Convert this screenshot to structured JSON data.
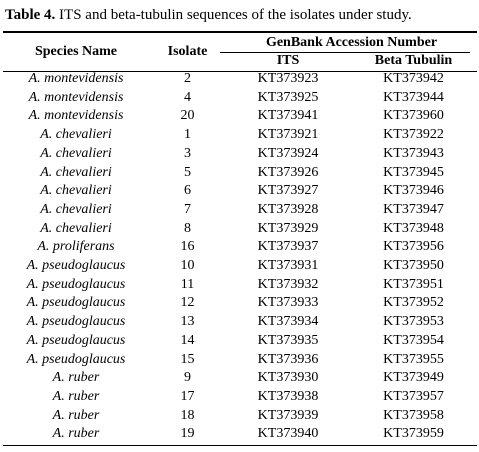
{
  "caption": {
    "label": "Table 4.",
    "text": " ITS and beta-tubulin sequences of the isolates under study."
  },
  "headers": {
    "species": "Species Name",
    "isolate": "Isolate",
    "genbank": "GenBank Accession Number",
    "its": "ITS",
    "beta": "Beta Tubulin"
  },
  "rows": [
    {
      "species": "A. montevidensis",
      "isolate": "2",
      "its": "KT373923",
      "beta": "KT373942"
    },
    {
      "species": "A. montevidensis",
      "isolate": "4",
      "its": "KT373925",
      "beta": "KT373944"
    },
    {
      "species": "A. montevidensis",
      "isolate": "20",
      "its": "KT373941",
      "beta": "KT373960"
    },
    {
      "species": "A. chevalieri",
      "isolate": "1",
      "its": "KT373921",
      "beta": "KT373922"
    },
    {
      "species": "A. chevalieri",
      "isolate": "3",
      "its": "KT373924",
      "beta": "KT373943"
    },
    {
      "species": "A. chevalieri",
      "isolate": "5",
      "its": "KT373926",
      "beta": "KT373945"
    },
    {
      "species": "A. chevalieri",
      "isolate": "6",
      "its": "KT373927",
      "beta": "KT373946"
    },
    {
      "species": "A. chevalieri",
      "isolate": "7",
      "its": "KT373928",
      "beta": "KT373947"
    },
    {
      "species": "A. chevalieri",
      "isolate": "8",
      "its": "KT373929",
      "beta": "KT373948"
    },
    {
      "species": "A. proliferans",
      "isolate": "16",
      "its": "KT373937",
      "beta": "KT373956"
    },
    {
      "species": "A. pseudoglaucus",
      "isolate": "10",
      "its": "KT373931",
      "beta": "KT373950"
    },
    {
      "species": "A. pseudoglaucus",
      "isolate": "11",
      "its": "KT373932",
      "beta": "KT373951"
    },
    {
      "species": "A. pseudoglaucus",
      "isolate": "12",
      "its": "KT373933",
      "beta": "KT373952"
    },
    {
      "species": "A. pseudoglaucus",
      "isolate": "13",
      "its": "KT373934",
      "beta": "KT373953"
    },
    {
      "species": "A. pseudoglaucus",
      "isolate": "14",
      "its": "KT373935",
      "beta": "KT373954"
    },
    {
      "species": "A. pseudoglaucus",
      "isolate": "15",
      "its": "KT373936",
      "beta": "KT373955"
    },
    {
      "species": "A. ruber",
      "isolate": "9",
      "its": "KT373930",
      "beta": "KT373949"
    },
    {
      "species": "A. ruber",
      "isolate": "17",
      "its": "KT373938",
      "beta": "KT373957"
    },
    {
      "species": "A. ruber",
      "isolate": "18",
      "its": "KT373939",
      "beta": "KT373958"
    },
    {
      "species": "A. ruber",
      "isolate": "19",
      "its": "KT373940",
      "beta": "KT373959"
    }
  ]
}
